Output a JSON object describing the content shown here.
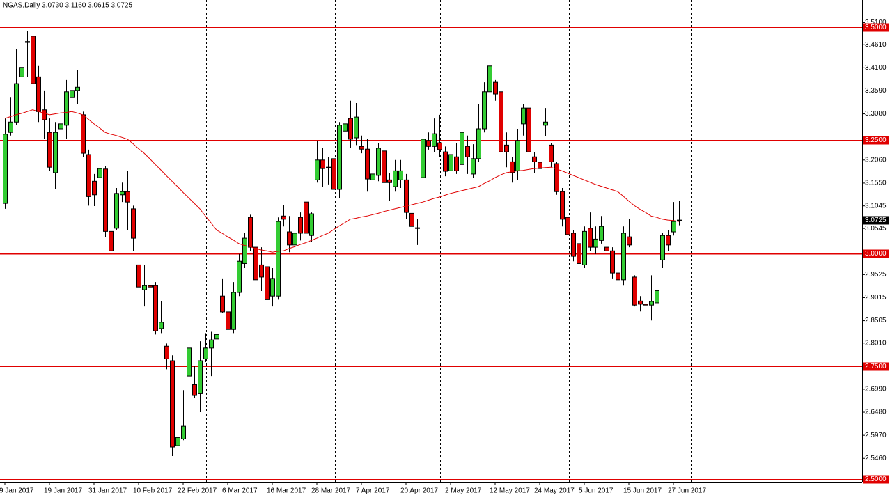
{
  "chart_data": {
    "type": "candlestick",
    "title": "NGAS,Daily  3.0730 3.1160 3.0615 3.0725",
    "categories": [
      "9 Jan 2017",
      null,
      null,
      null,
      null,
      null,
      null,
      null,
      "19 Jan 2017",
      null,
      null,
      null,
      null,
      null,
      null,
      null,
      "31 Jan 2017",
      null,
      null,
      null,
      null,
      null,
      null,
      null,
      "10 Feb 2017",
      null,
      null,
      null,
      null,
      null,
      null,
      null,
      "22 Feb 2017",
      null,
      null,
      null,
      null,
      null,
      null,
      null,
      "6 Mar 2017",
      null,
      null,
      null,
      null,
      null,
      null,
      null,
      "16 Mar 2017",
      null,
      null,
      null,
      null,
      null,
      null,
      null,
      "28 Mar 2017",
      null,
      null,
      null,
      null,
      null,
      null,
      null,
      "7 Apr 2017",
      null,
      null,
      null,
      null,
      null,
      null,
      null,
      "20 Apr 2017",
      null,
      null,
      null,
      null,
      null,
      null,
      null,
      "2 May 2017",
      null,
      null,
      null,
      null,
      null,
      null,
      null,
      "12 May 2017",
      null,
      null,
      null,
      null,
      null,
      null,
      null,
      "24 May 2017",
      null,
      null,
      null,
      null,
      null,
      null,
      null,
      "5 Jun 2017",
      null,
      null,
      null,
      null,
      null,
      null,
      null,
      "15 Jun 2017",
      null,
      null,
      null,
      null,
      null,
      null,
      null,
      "27 Jun 2017",
      null
    ],
    "open": [
      3.11,
      3.267,
      3.29,
      3.39,
      3.468,
      3.48,
      3.39,
      3.317,
      3.267,
      3.178,
      3.275,
      3.283,
      3.344,
      3.36,
      3.306,
      3.218,
      3.159,
      3.167,
      3.186,
      3.048,
      3.055,
      3.129,
      3.136,
      3.098,
      2.974,
      2.919,
      2.928,
      2.928,
      2.833,
      2.794,
      2.762,
      2.574,
      2.589,
      2.728,
      2.709,
      2.689,
      2.766,
      2.79,
      2.81,
      2.905,
      2.87,
      2.831,
      2.913,
      2.977,
      3.079,
      3.013,
      2.974,
      2.97,
      2.905,
      2.905,
      3.082,
      3.047,
      3.018,
      3.079,
      3.113,
      3.039,
      3.162,
      3.206,
      3.19,
      3.209,
      3.141,
      3.27,
      3.298,
      3.255,
      3.236,
      3.23,
      3.162,
      3.172,
      3.226,
      3.162,
      3.147,
      3.162,
      3.162,
      3.088,
      3.056,
      3.167,
      3.249,
      3.236,
      3.244,
      3.224,
      3.182,
      3.213,
      3.196,
      3.236,
      3.175,
      3.209,
      3.275,
      3.357,
      3.378,
      3.357,
      3.239,
      3.202,
      3.182,
      3.286,
      3.321,
      3.213,
      3.201,
      3.283,
      3.239,
      3.198,
      3.136,
      3.079,
      3.044,
      3.021,
      2.974,
      3.055,
      3.013,
      3.028,
      3.013,
      3.005,
      2.956,
      2.941,
      3.036,
      2.947,
      2.894,
      2.887,
      2.885,
      2.89,
      2.985,
      3.039,
      3.047,
      3.073
    ],
    "high": [
      3.298,
      3.344,
      3.452,
      3.452,
      3.491,
      3.506,
      3.414,
      3.36,
      3.298,
      3.29,
      3.313,
      3.383,
      3.491,
      3.406,
      3.313,
      3.229,
      3.175,
      3.202,
      3.193,
      3.079,
      3.144,
      3.156,
      3.182,
      3.105,
      2.987,
      2.974,
      2.987,
      2.936,
      2.893,
      2.8,
      2.774,
      2.62,
      2.697,
      2.797,
      2.751,
      2.805,
      2.823,
      2.826,
      2.828,
      2.944,
      2.882,
      2.936,
      2.998,
      3.044,
      3.085,
      3.024,
      3.013,
      2.974,
      2.967,
      3.079,
      3.107,
      3.082,
      3.085,
      3.09,
      3.124,
      3.09,
      3.249,
      3.233,
      3.213,
      3.218,
      3.29,
      3.341,
      3.337,
      3.332,
      3.26,
      3.252,
      3.213,
      3.244,
      3.233,
      3.178,
      3.206,
      3.206,
      3.175,
      3.101,
      3.075,
      3.275,
      3.267,
      3.298,
      3.306,
      3.236,
      3.236,
      3.244,
      3.275,
      3.26,
      3.241,
      3.329,
      3.378,
      3.424,
      3.383,
      3.372,
      3.267,
      3.213,
      3.275,
      3.329,
      3.326,
      3.224,
      3.218,
      3.321,
      3.244,
      3.202,
      3.144,
      3.098,
      3.051,
      3.036,
      3.059,
      3.09,
      3.059,
      3.082,
      3.059,
      3.013,
      2.982,
      3.059,
      3.075,
      2.951,
      2.905,
      2.897,
      2.951,
      2.931,
      3.044,
      3.051,
      3.113,
      3.116
    ],
    "low": [
      3.098,
      3.26,
      3.283,
      3.344,
      3.39,
      3.352,
      3.29,
      3.252,
      3.182,
      3.141,
      3.252,
      3.252,
      3.306,
      3.329,
      3.213,
      3.105,
      3.104,
      3.121,
      3.036,
      2.998,
      3.051,
      3.113,
      3.051,
      3.005,
      2.916,
      2.882,
      2.913,
      2.82,
      2.823,
      2.743,
      2.551,
      2.515,
      2.586,
      2.682,
      2.679,
      2.648,
      2.759,
      2.728,
      2.802,
      2.867,
      2.813,
      2.823,
      2.905,
      2.967,
      3.005,
      2.928,
      2.916,
      2.882,
      2.882,
      2.897,
      3.059,
      3.002,
      2.977,
      3.028,
      3.036,
      3.024,
      3.156,
      3.147,
      3.152,
      3.121,
      3.121,
      3.252,
      3.233,
      3.239,
      3.221,
      3.136,
      3.144,
      3.159,
      3.141,
      3.116,
      3.136,
      3.144,
      3.075,
      3.028,
      3.018,
      3.156,
      3.229,
      3.224,
      3.213,
      3.17,
      3.172,
      3.175,
      3.182,
      3.175,
      3.167,
      3.202,
      3.267,
      3.347,
      3.337,
      3.213,
      3.19,
      3.156,
      3.162,
      3.26,
      3.213,
      3.178,
      3.136,
      3.258,
      3.19,
      3.129,
      3.059,
      3.028,
      2.982,
      2.928,
      2.967,
      3.005,
      2.998,
      3.021,
      2.967,
      2.944,
      2.91,
      2.928,
      3.013,
      2.882,
      2.871,
      2.882,
      2.851,
      2.887,
      2.967,
      3.005,
      3.039,
      3.0615
    ],
    "close": [
      3.263,
      3.29,
      3.375,
      3.411,
      3.466,
      3.375,
      3.313,
      3.295,
      3.19,
      3.267,
      3.286,
      3.357,
      3.36,
      3.367,
      3.221,
      3.125,
      3.129,
      3.187,
      3.048,
      3.005,
      3.132,
      3.136,
      3.113,
      3.033,
      2.925,
      2.928,
      2.925,
      2.828,
      2.847,
      2.766,
      2.571,
      2.592,
      2.617,
      2.79,
      2.685,
      2.762,
      2.79,
      2.808,
      2.82,
      2.87,
      2.831,
      2.913,
      2.982,
      3.033,
      3.013,
      2.941,
      2.947,
      2.897,
      2.944,
      3.07,
      3.075,
      3.018,
      3.044,
      3.044,
      3.044,
      3.087,
      3.206,
      3.187,
      3.189,
      3.141,
      3.283,
      3.286,
      3.252,
      3.301,
      3.23,
      3.164,
      3.175,
      3.232,
      3.156,
      3.156,
      3.182,
      3.182,
      3.09,
      3.059,
      3.055,
      3.252,
      3.236,
      3.264,
      3.229,
      3.181,
      3.218,
      3.182,
      3.267,
      3.213,
      3.209,
      3.275,
      3.357,
      3.414,
      3.352,
      3.224,
      3.224,
      3.178,
      3.249,
      3.321,
      3.224,
      3.202,
      3.187,
      3.29,
      3.202,
      3.136,
      3.075,
      3.041,
      2.993,
      2.977,
      3.048,
      3.013,
      3.031,
      3.059,
      3.005,
      2.956,
      2.941,
      3.044,
      3.018,
      2.885,
      2.887,
      2.885,
      2.893,
      2.917,
      3.039,
      3.018,
      3.07,
      3.0725
    ],
    "up_color": "#33cc33",
    "down_color": "#e00000",
    "ma": {
      "color": "#e00000",
      "values": [
        3.298,
        3.302,
        3.306,
        3.309,
        3.313,
        3.317,
        3.313,
        3.31,
        3.306,
        3.308,
        3.31,
        3.311,
        3.313,
        3.31,
        3.306,
        3.296,
        3.286,
        3.277,
        3.267,
        3.263,
        3.26,
        3.256,
        3.252,
        3.242,
        3.231,
        3.221,
        3.209,
        3.196,
        3.184,
        3.171,
        3.159,
        3.147,
        3.134,
        3.122,
        3.11,
        3.098,
        3.082,
        3.067,
        3.051,
        3.044,
        3.036,
        3.029,
        3.021,
        3.017,
        3.014,
        3.01,
        3.007,
        3.005,
        3.002,
        3.004,
        3.005,
        3.01,
        3.014,
        3.019,
        3.023,
        3.028,
        3.033,
        3.039,
        3.044,
        3.052,
        3.06,
        3.067,
        3.075,
        3.077,
        3.08,
        3.082,
        3.085,
        3.088,
        3.092,
        3.095,
        3.098,
        3.101,
        3.104,
        3.107,
        3.11,
        3.113,
        3.117,
        3.121,
        3.124,
        3.128,
        3.132,
        3.135,
        3.138,
        3.141,
        3.144,
        3.147,
        3.154,
        3.16,
        3.167,
        3.173,
        3.178,
        3.18,
        3.182,
        3.183,
        3.185,
        3.187,
        3.188,
        3.189,
        3.19,
        3.186,
        3.182,
        3.177,
        3.172,
        3.167,
        3.162,
        3.157,
        3.152,
        3.148,
        3.144,
        3.14,
        3.136,
        3.126,
        3.115,
        3.105,
        3.097,
        3.09,
        3.082,
        3.079,
        3.075,
        3.073,
        3.072,
        3.07
      ]
    },
    "ylim": [
      2.494,
      3.56
    ],
    "yticks": [
      {
        "value": 3.51,
        "label": "3.5100"
      },
      {
        "value": 3.461,
        "label": "3.4610"
      },
      {
        "value": 3.41,
        "label": "3.4100"
      },
      {
        "value": 3.359,
        "label": "3.3590"
      },
      {
        "value": 3.308,
        "label": "3.3080"
      },
      {
        "value": 3.206,
        "label": "3.2060"
      },
      {
        "value": 3.155,
        "label": "3.1550"
      },
      {
        "value": 3.1045,
        "label": "3.1045"
      },
      {
        "value": 3.0545,
        "label": "3.0545"
      },
      {
        "value": 2.9525,
        "label": "2.9525"
      },
      {
        "value": 2.9015,
        "label": "2.9015"
      },
      {
        "value": 2.8505,
        "label": "2.8505"
      },
      {
        "value": 2.801,
        "label": "2.8010"
      },
      {
        "value": 2.699,
        "label": "2.6990"
      },
      {
        "value": 2.648,
        "label": "2.6480"
      },
      {
        "value": 2.597,
        "label": "2.5970"
      },
      {
        "value": 2.546,
        "label": "2.5460"
      }
    ],
    "levels": [
      {
        "value": 3.5,
        "label": "3.5000"
      },
      {
        "value": 3.25,
        "label": "3.2500"
      },
      {
        "value": 3.0,
        "label": "3.0000"
      },
      {
        "value": 2.75,
        "label": "2.7500"
      },
      {
        "value": 2.5,
        "label": "2.5000"
      }
    ],
    "level_color": "#e00000",
    "current_price": {
      "value": 3.0725,
      "label": "3.0725"
    }
  }
}
